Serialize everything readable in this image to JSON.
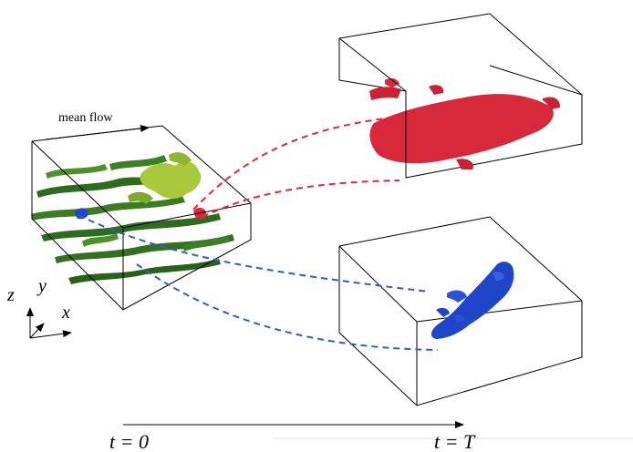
{
  "labels": {
    "mean_flow": "mean flow",
    "axis_z": "z",
    "axis_y": "y",
    "axis_x": "x",
    "time_start": "t = 0",
    "time_end": "t = T"
  },
  "colors": {
    "box_edge": "#000000",
    "green_dark": "#2f6b1e",
    "green_mid": "#4d8f2c",
    "green_light": "#a9c93c",
    "red": "#d8283b",
    "blue": "#1f45c9",
    "red_dashed": "#e0283a",
    "blue_dashed": "#2f5ad6"
  }
}
